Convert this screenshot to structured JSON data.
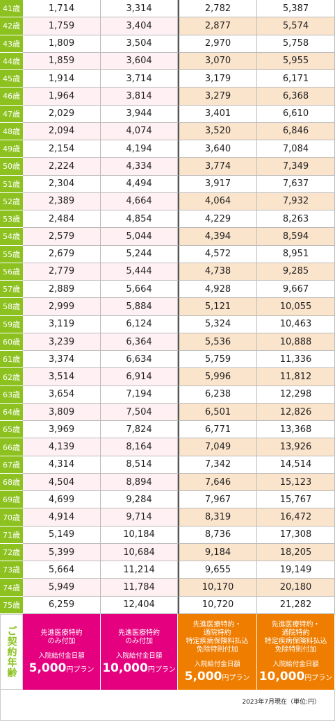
{
  "table": {
    "rows": [
      [
        "41歳",
        "1,714",
        "3,314",
        "2,782",
        "5,387"
      ],
      [
        "42歳",
        "1,759",
        "3,404",
        "2,877",
        "5,574"
      ],
      [
        "43歳",
        "1,809",
        "3,504",
        "2,970",
        "5,758"
      ],
      [
        "44歳",
        "1,859",
        "3,604",
        "3,070",
        "5,955"
      ],
      [
        "45歳",
        "1,914",
        "3,714",
        "3,179",
        "6,171"
      ],
      [
        "46歳",
        "1,964",
        "3,814",
        "3,279",
        "6,368"
      ],
      [
        "47歳",
        "2,029",
        "3,944",
        "3,401",
        "6,610"
      ],
      [
        "48歳",
        "2,094",
        "4,074",
        "3,520",
        "6,846"
      ],
      [
        "49歳",
        "2,154",
        "4,194",
        "3,640",
        "7,084"
      ],
      [
        "50歳",
        "2,224",
        "4,334",
        "3,774",
        "7,349"
      ],
      [
        "51歳",
        "2,304",
        "4,494",
        "3,917",
        "7,637"
      ],
      [
        "52歳",
        "2,389",
        "4,664",
        "4,064",
        "7,932"
      ],
      [
        "53歳",
        "2,484",
        "4,854",
        "4,229",
        "8,263"
      ],
      [
        "54歳",
        "2,579",
        "5,044",
        "4,394",
        "8,594"
      ],
      [
        "55歳",
        "2,679",
        "5,244",
        "4,572",
        "8,951"
      ],
      [
        "56歳",
        "2,779",
        "5,444",
        "4,738",
        "9,285"
      ],
      [
        "57歳",
        "2,889",
        "5,664",
        "4,928",
        "9,667"
      ],
      [
        "58歳",
        "2,999",
        "5,884",
        "5,121",
        "10,055"
      ],
      [
        "59歳",
        "3,119",
        "6,124",
        "5,324",
        "10,463"
      ],
      [
        "60歳",
        "3,239",
        "6,364",
        "5,536",
        "10,888"
      ],
      [
        "61歳",
        "3,374",
        "6,634",
        "5,759",
        "11,336"
      ],
      [
        "62歳",
        "3,514",
        "6,914",
        "5,996",
        "11,812"
      ],
      [
        "63歳",
        "3,654",
        "7,194",
        "6,238",
        "12,298"
      ],
      [
        "64歳",
        "3,809",
        "7,504",
        "6,501",
        "12,826"
      ],
      [
        "65歳",
        "3,969",
        "7,824",
        "6,771",
        "13,368"
      ],
      [
        "66歳",
        "4,139",
        "8,164",
        "7,049",
        "13,926"
      ],
      [
        "67歳",
        "4,314",
        "8,514",
        "7,342",
        "14,514"
      ],
      [
        "68歳",
        "4,504",
        "8,894",
        "7,646",
        "15,123"
      ],
      [
        "69歳",
        "4,699",
        "9,284",
        "7,967",
        "15,767"
      ],
      [
        "70歳",
        "4,914",
        "9,714",
        "8,319",
        "16,472"
      ],
      [
        "71歳",
        "5,149",
        "10,184",
        "8,736",
        "17,308"
      ],
      [
        "72歳",
        "5,399",
        "10,684",
        "9,184",
        "18,205"
      ],
      [
        "73歳",
        "5,664",
        "11,214",
        "9,655",
        "19,149"
      ],
      [
        "74歳",
        "5,949",
        "11,784",
        "10,170",
        "20,180"
      ],
      [
        "75歳",
        "6,259",
        "12,404",
        "10,720",
        "21,282"
      ]
    ],
    "corner": "ご契約年齢",
    "columns": [
      {
        "lines": [
          "先進医療特約",
          "のみ付加"
        ],
        "benefit": "入院給付金日額",
        "amount": "5,000",
        "unit": "円プラン"
      },
      {
        "lines": [
          "先進医療特約",
          "のみ付加"
        ],
        "benefit": "入院給付金日額",
        "amount": "10,000",
        "unit": "円プラン"
      },
      {
        "lines": [
          "先進医療特約・",
          "通院特約",
          "特定疾病保険料払込",
          "免除特則付加"
        ],
        "benefit": "入院給付金日額",
        "amount": "5,000",
        "unit": "円プラン"
      },
      {
        "lines": [
          "先進医療特約・",
          "通院特約",
          "特定疾病保険料払込",
          "免除特則付加"
        ],
        "benefit": "入院給付金日額",
        "amount": "10,000",
        "unit": "円プラン"
      }
    ]
  },
  "note": "2023年7月現在（単位:円）"
}
